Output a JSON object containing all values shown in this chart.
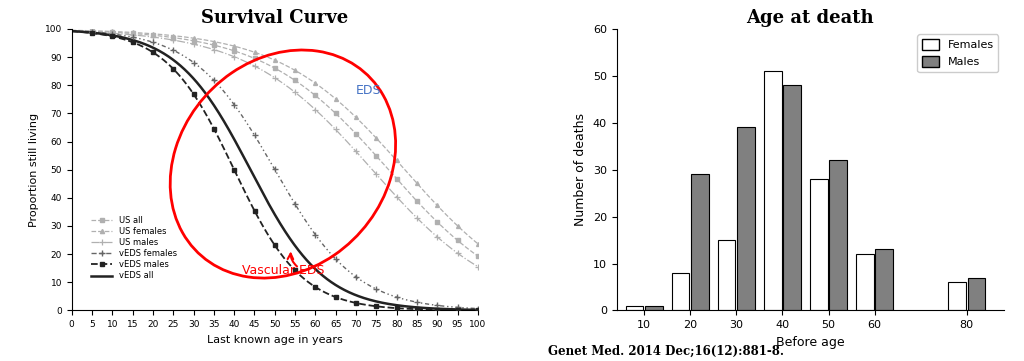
{
  "survival_title": "Survival Curve",
  "survival_xlabel": "Last known age in years",
  "survival_ylabel": "Proportion still living",
  "survival_xlim": [
    0,
    100
  ],
  "survival_ylim": [
    0,
    100
  ],
  "survival_xticks": [
    0,
    5,
    10,
    15,
    20,
    25,
    30,
    35,
    40,
    45,
    50,
    55,
    60,
    65,
    70,
    75,
    80,
    85,
    90,
    95,
    100
  ],
  "survival_yticks": [
    0,
    10,
    20,
    30,
    40,
    50,
    60,
    70,
    80,
    90,
    100
  ],
  "EDS_label": "EDS",
  "EDS_label_color": "#4472C4",
  "vascular_label": "Vascular EDS",
  "vascular_label_color": "red",
  "bar_title": "Age at death",
  "bar_xlabel": "Before age",
  "bar_ylabel": "Number of deaths",
  "bar_categories": [
    10,
    20,
    30,
    40,
    50,
    60,
    80
  ],
  "bar_females": [
    1,
    8,
    15,
    51,
    28,
    12,
    6
  ],
  "bar_males": [
    1,
    29,
    39,
    48,
    32,
    13,
    7
  ],
  "bar_ylim": [
    0,
    60
  ],
  "bar_yticks": [
    0,
    10,
    20,
    30,
    40,
    50,
    60
  ],
  "bar_female_color": "#ffffff",
  "bar_male_color": "#808080",
  "bar_edge_color": "#000000",
  "citation": "Genet Med. 2014 Dec;16(12):881-8.",
  "bg_color": "#ffffff"
}
